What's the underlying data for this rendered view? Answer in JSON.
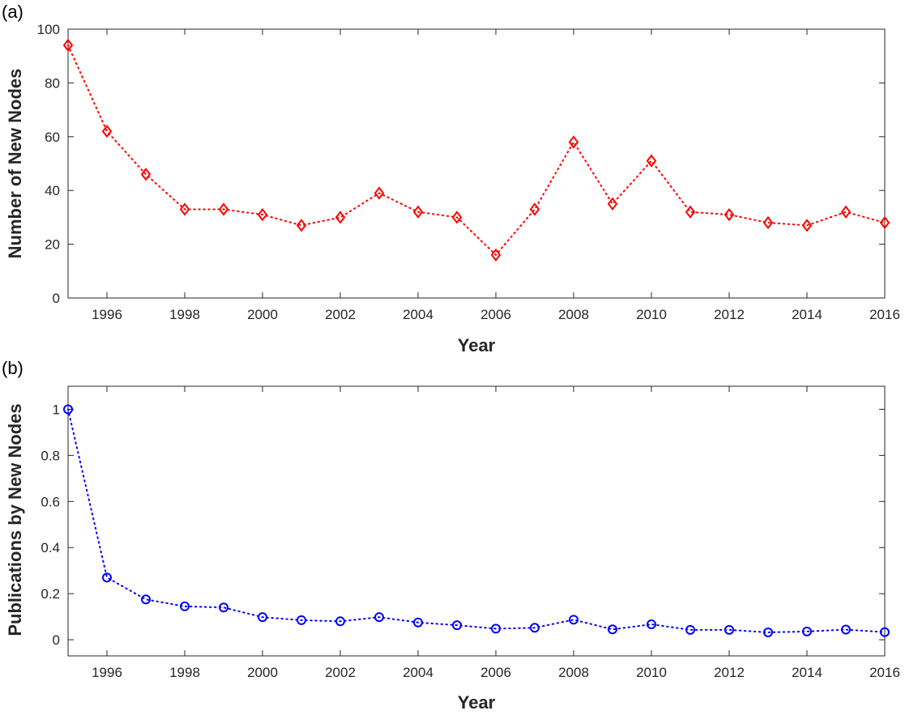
{
  "chart_data": [
    {
      "id": "a",
      "panel_label": "(a)",
      "type": "line",
      "xlabel": "Year",
      "ylabel": "Number of New Nodes",
      "xlim": [
        1995,
        2016
      ],
      "ylim": [
        0,
        100
      ],
      "xticks": [
        1996,
        1998,
        2000,
        2002,
        2004,
        2006,
        2008,
        2010,
        2012,
        2014,
        2016
      ],
      "yticks": [
        0,
        20,
        40,
        60,
        80,
        100
      ],
      "ytick_labels": [
        "0",
        "20",
        "40",
        "60",
        "80",
        "100"
      ],
      "grid": false,
      "line_style": "dotted",
      "marker": "diamond",
      "color": "#ff0000",
      "x": [
        1995,
        1996,
        1997,
        1998,
        1999,
        2000,
        2001,
        2002,
        2003,
        2004,
        2005,
        2006,
        2007,
        2008,
        2009,
        2010,
        2011,
        2012,
        2013,
        2014,
        2015,
        2016
      ],
      "values": [
        94,
        62,
        46,
        33,
        33,
        31,
        27,
        30,
        39,
        32,
        30,
        16,
        33,
        58,
        35,
        51,
        32,
        31,
        28,
        27,
        32,
        28
      ]
    },
    {
      "id": "b",
      "panel_label": "(b)",
      "type": "line",
      "xlabel": "Year",
      "ylabel": "Publications by New Nodes",
      "xlim": [
        1995,
        2016
      ],
      "ylim": [
        -0.07,
        1.1
      ],
      "xticks": [
        1996,
        1998,
        2000,
        2002,
        2004,
        2006,
        2008,
        2010,
        2012,
        2014,
        2016
      ],
      "yticks": [
        0,
        0.2,
        0.4,
        0.6,
        0.8,
        1
      ],
      "ytick_labels": [
        "0",
        "0.2",
        "0.4",
        "0.6",
        "0.8",
        "1"
      ],
      "grid": false,
      "line_style": "dotted",
      "marker": "circle",
      "color": "#0000ff",
      "x": [
        1995,
        1996,
        1997,
        1998,
        1999,
        2000,
        2001,
        2002,
        2003,
        2004,
        2005,
        2006,
        2007,
        2008,
        2009,
        2010,
        2011,
        2012,
        2013,
        2014,
        2015,
        2016
      ],
      "values": [
        1.0,
        0.27,
        0.175,
        0.145,
        0.14,
        0.098,
        0.085,
        0.08,
        0.098,
        0.075,
        0.063,
        0.048,
        0.052,
        0.087,
        0.045,
        0.067,
        0.043,
        0.043,
        0.032,
        0.036,
        0.044,
        0.033
      ]
    }
  ]
}
